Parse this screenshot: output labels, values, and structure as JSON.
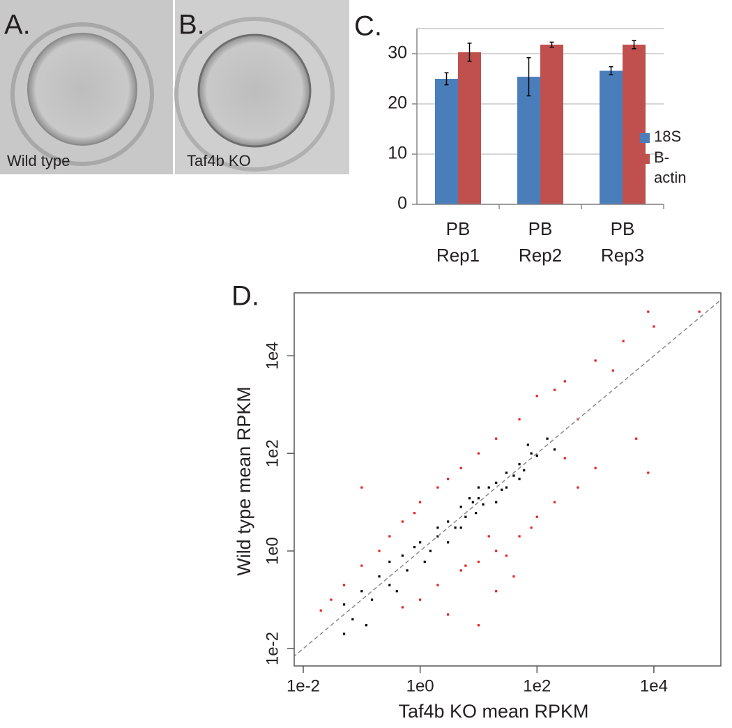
{
  "images": [
    {
      "label": "A.",
      "caption": "Wild type"
    },
    {
      "label": "B.",
      "caption": "Taf4b KO"
    }
  ],
  "chart_data": [
    {
      "type": "bar",
      "label": "C.",
      "categories": [
        "PB Rep1",
        "PB Rep2",
        "PB Rep3"
      ],
      "series": [
        {
          "name": "18S",
          "color": "#4a7ebb",
          "values": [
            25,
            25.4,
            26.6
          ],
          "errors": [
            1.2,
            3.8,
            0.8
          ]
        },
        {
          "name": "B-actin",
          "color": "#c0504d",
          "values": [
            30.3,
            31.8,
            31.8
          ],
          "errors": [
            1.8,
            0.5,
            0.8
          ]
        }
      ],
      "ylim": [
        0,
        35
      ],
      "yticks": [
        0,
        10,
        20,
        30
      ],
      "grid": true,
      "legend": "right"
    },
    {
      "type": "scatter",
      "label": "D.",
      "xlabel": "Taf4b KO mean RPKM",
      "ylabel": "Wild type mean RPKM",
      "xscale": "log",
      "yscale": "log",
      "identity_line": true,
      "xlim": [
        0.007,
        140000
      ],
      "ylim": [
        0.0044,
        195000
      ],
      "xticks": [
        {
          "value": 0.01,
          "label": "1e-2"
        },
        {
          "value": 1,
          "label": "1e0"
        },
        {
          "value": 100,
          "label": "1e2"
        },
        {
          "value": 10000,
          "label": "1e4"
        }
      ],
      "yticks": [
        {
          "value": 0.01,
          "label": "1e-2"
        },
        {
          "value": 1,
          "label": "1e0"
        },
        {
          "value": 100,
          "label": "1e2"
        },
        {
          "value": 10000,
          "label": "1e4"
        }
      ],
      "series": [
        {
          "color": "#e8201e",
          "x": [
            0.03,
            0.05,
            0.1,
            0.2,
            0.3,
            0.5,
            0.8,
            1,
            2,
            3,
            5,
            0.1,
            10,
            20,
            50,
            100,
            200,
            300,
            1000,
            3000,
            10000,
            60000,
            2000,
            500,
            1,
            2,
            5,
            10,
            20,
            30,
            50,
            80,
            100,
            200,
            500,
            1000,
            300,
            5000,
            8000,
            40,
            3,
            10,
            6,
            15,
            20,
            0.5,
            0.02,
            8000
          ],
          "y": [
            0.1,
            0.2,
            0.5,
            1,
            2,
            4,
            6,
            10,
            20,
            30,
            50,
            20,
            100,
            200,
            500,
            1500,
            2000,
            3000,
            8000,
            20000,
            40000,
            80000,
            5000,
            500,
            0.1,
            0.2,
            0.4,
            0.6,
            1,
            0.8,
            2,
            3,
            5,
            10,
            20,
            50,
            80,
            200,
            40,
            0.3,
            0.05,
            0.03,
            0.5,
            2,
            0.15,
            0.07,
            0.06,
            80000
          ]
        },
        {
          "color": "#000000",
          "x": [
            0.05,
            0.1,
            0.2,
            0.3,
            0.5,
            0.8,
            1,
            1.5,
            2,
            3,
            4,
            5,
            6,
            8,
            10,
            12,
            15,
            20,
            25,
            30,
            40,
            50,
            60,
            80,
            100,
            0.3,
            0.6,
            2,
            3,
            5,
            7,
            9,
            0.15,
            0.07,
            0.4,
            1.2,
            20,
            30,
            150,
            200,
            0.05,
            0.12,
            50,
            70,
            10
          ],
          "y": [
            0.08,
            0.15,
            0.3,
            0.2,
            0.8,
            1.2,
            1.5,
            1,
            3,
            4,
            3,
            8,
            5,
            10,
            12,
            9,
            20,
            25,
            18,
            40,
            35,
            60,
            45,
            100,
            90,
            0.6,
            0.4,
            2,
            1.5,
            3,
            12,
            6,
            0.1,
            0.04,
            0.15,
            0.6,
            10,
            20,
            200,
            120,
            0.02,
            0.03,
            30,
            150,
            20
          ]
        }
      ]
    }
  ]
}
